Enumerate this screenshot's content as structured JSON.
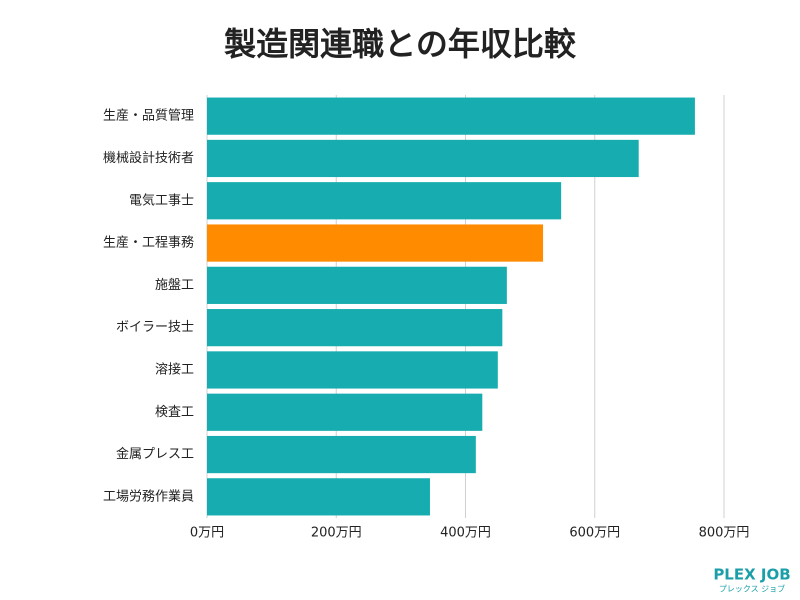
{
  "chart_data": {
    "type": "barh",
    "title": "製造関連職との年収比較",
    "categories": [
      "生産・品質管理",
      "機械設計技術者",
      "電気工事士",
      "生産・工程事務",
      "施盤工",
      "ボイラー技士",
      "溶接工",
      "検査工",
      "金属プレス工",
      "工場労務作業員"
    ],
    "values": [
      755,
      668,
      548,
      520,
      464,
      457,
      450,
      426,
      416,
      345
    ],
    "colors": [
      "#17adb0",
      "#17adb0",
      "#17adb0",
      "#ff8c00",
      "#17adb0",
      "#17adb0",
      "#17adb0",
      "#17adb0",
      "#17adb0",
      "#17adb0"
    ],
    "xlim": [
      0,
      800
    ],
    "xticks": [
      {
        "value": 0,
        "label": "0万円"
      },
      {
        "value": 200,
        "label": "200万円"
      },
      {
        "value": 400,
        "label": "400万円"
      },
      {
        "value": 600,
        "label": "600万円"
      },
      {
        "value": 800,
        "label": "800万円"
      }
    ],
    "grid": true
  },
  "logo": {
    "title": "PLEX JOB",
    "subtitle": "プレックス ジョブ"
  }
}
